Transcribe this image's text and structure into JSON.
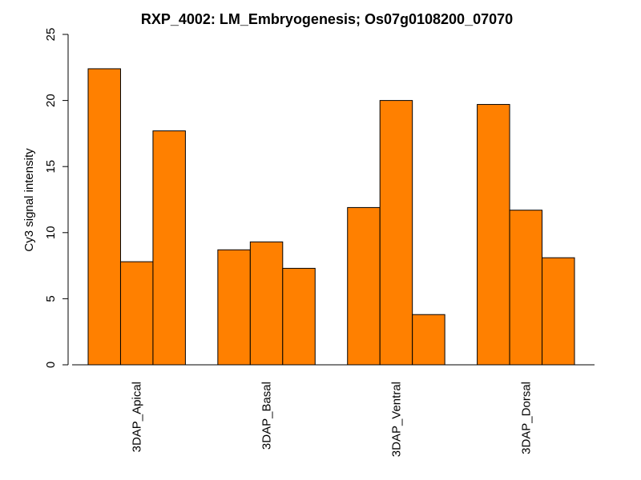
{
  "chart_data": {
    "type": "bar",
    "title": "RXP_4002: LM_Embryogenesis; Os07g0108200_07070",
    "xlabel": "",
    "ylabel": "Cy3 signal intensity",
    "ylim": [
      0,
      25
    ],
    "yticks": [
      "0",
      "5",
      "10",
      "15",
      "20",
      "25"
    ],
    "categories": [
      "3DAP_Apical",
      "3DAP_Basal",
      "3DAP_Ventral",
      "3DAP_Dorsal"
    ],
    "values": [
      [
        22.4,
        7.8,
        17.7
      ],
      [
        8.7,
        9.3,
        7.3
      ],
      [
        11.9,
        20.0,
        3.8
      ],
      [
        19.7,
        11.7,
        8.1
      ]
    ],
    "bar_color": "#FF8000",
    "grid": false,
    "legend": "none"
  }
}
